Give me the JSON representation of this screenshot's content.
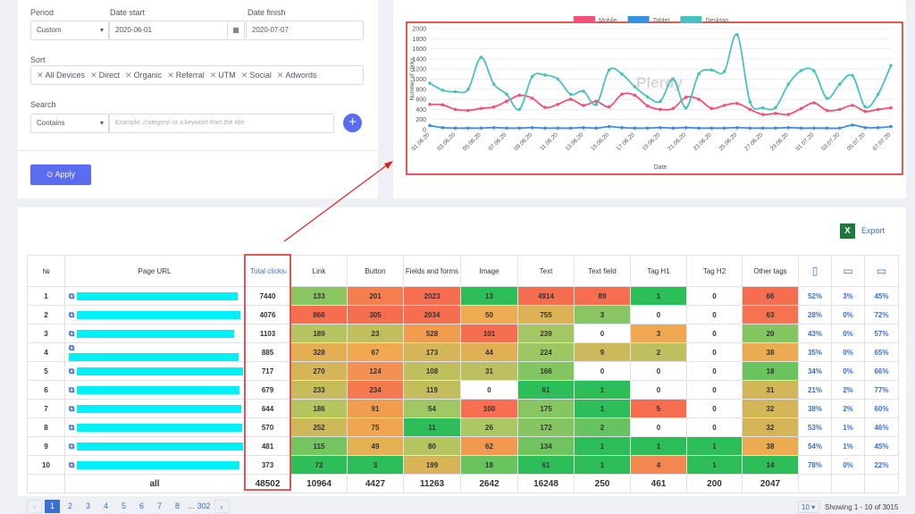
{
  "filters": {
    "period_label": "Period",
    "period": "Custom",
    "date_start_label": "Date start",
    "date_start": "2020-06-01",
    "date_finish_label": "Date finish",
    "date_finish": "2020-07-07",
    "sort_label": "Sort",
    "sort_tags": [
      "All Devices",
      "Direct",
      "Organic",
      "Referral",
      "UTM",
      "Social",
      "Adwords"
    ],
    "search_label": "Search",
    "search_mode": "Contains",
    "search_placeholder": "Example: /category/ or a keyword from the title",
    "apply": "Apply"
  },
  "chart_data": {
    "type": "line",
    "ylabel": "Number of clicks",
    "xlabel": "Date",
    "watermark": "Plerdy",
    "categories": [
      "01.06.20",
      null,
      "03.06.20",
      null,
      "05.06.20",
      null,
      "07.06.20",
      null,
      "09.06.20",
      null,
      "11.06.20",
      null,
      "13.06.20",
      null,
      "15.06.20",
      null,
      "17.06.20",
      null,
      "19.06.20",
      null,
      "21.06.20",
      null,
      "23.06.20",
      null,
      "25.06.20",
      null,
      "27.06.20",
      null,
      "29.06.20",
      null,
      "01.07.20",
      null,
      "03.07.20",
      null,
      "05.07.20",
      null,
      "07.07.20"
    ],
    "series": [
      {
        "name": "Mobile",
        "color": "#f0507a",
        "values": [
          500,
          490,
          400,
          380,
          420,
          450,
          560,
          680,
          620,
          440,
          500,
          600,
          480,
          560,
          450,
          700,
          680,
          470,
          400,
          420,
          640,
          600,
          420,
          480,
          520,
          400,
          300,
          320,
          300,
          420,
          530,
          380,
          400,
          480,
          360,
          400,
          430
        ]
      },
      {
        "name": "Tablet",
        "color": "#3a8fe0",
        "values": [
          80,
          40,
          30,
          30,
          30,
          40,
          30,
          30,
          40,
          30,
          30,
          30,
          40,
          30,
          60,
          40,
          30,
          30,
          40,
          30,
          40,
          30,
          30,
          30,
          40,
          30,
          30,
          30,
          40,
          30,
          30,
          30,
          30,
          90,
          40,
          40,
          60
        ]
      },
      {
        "name": "Desktop",
        "color": "#4cc0c0",
        "values": [
          920,
          780,
          750,
          800,
          1430,
          900,
          700,
          400,
          1050,
          1080,
          1000,
          700,
          760,
          500,
          1180,
          1100,
          850,
          650,
          560,
          1000,
          430,
          1100,
          1180,
          1150,
          1880,
          550,
          430,
          440,
          900,
          1170,
          1160,
          620,
          900,
          1070,
          450,
          700,
          1270
        ]
      }
    ],
    "ylim": [
      0,
      2000
    ],
    "yticks": [
      0,
      200,
      400,
      600,
      800,
      1000,
      1200,
      1400,
      1600,
      1800,
      2000
    ],
    "grid": true
  },
  "export": "Export",
  "table": {
    "columns": [
      "№",
      "Page URL",
      "Total clicks",
      "Link",
      "Button",
      "Fields and forms",
      "Image",
      "Text",
      "Text field",
      "Tag H1",
      "Tag H2",
      "Other tags"
    ],
    "rows": [
      [
        1,
        7440,
        133,
        201,
        2023,
        13,
        4914,
        89,
        1,
        0,
        66,
        "52%",
        "3%",
        "45%"
      ],
      [
        2,
        4076,
        866,
        305,
        2034,
        50,
        755,
        3,
        0,
        0,
        63,
        "28%",
        "0%",
        "72%"
      ],
      [
        3,
        1103,
        189,
        23,
        528,
        101,
        239,
        0,
        3,
        0,
        20,
        "43%",
        "0%",
        "57%"
      ],
      [
        4,
        885,
        328,
        67,
        173,
        44,
        224,
        9,
        2,
        0,
        38,
        "35%",
        "0%",
        "65%"
      ],
      [
        5,
        717,
        270,
        124,
        108,
        31,
        166,
        0,
        0,
        0,
        18,
        "34%",
        "0%",
        "66%"
      ],
      [
        6,
        679,
        233,
        234,
        119,
        0,
        61,
        1,
        0,
        0,
        31,
        "21%",
        "2%",
        "77%"
      ],
      [
        7,
        644,
        186,
        91,
        54,
        100,
        175,
        1,
        5,
        0,
        32,
        "38%",
        "2%",
        "60%"
      ],
      [
        8,
        570,
        252,
        75,
        11,
        26,
        172,
        2,
        0,
        0,
        32,
        "53%",
        "1%",
        "46%"
      ],
      [
        9,
        481,
        115,
        49,
        80,
        62,
        134,
        1,
        1,
        1,
        38,
        "54%",
        "1%",
        "45%"
      ],
      [
        10,
        373,
        72,
        3,
        199,
        18,
        61,
        1,
        4,
        1,
        14,
        "78%",
        "0%",
        "22%"
      ]
    ],
    "total": {
      "label": "all",
      "values": [
        48502,
        10964,
        4427,
        11263,
        2642,
        16248,
        250,
        461,
        200,
        2047
      ]
    }
  },
  "pagination": {
    "pages": [
      1,
      2,
      3,
      4,
      5,
      6,
      7,
      8
    ],
    "ellipsis": "...",
    "last": 302,
    "per_page": 10,
    "showing": "Showing 1 - 10 of 3015"
  }
}
